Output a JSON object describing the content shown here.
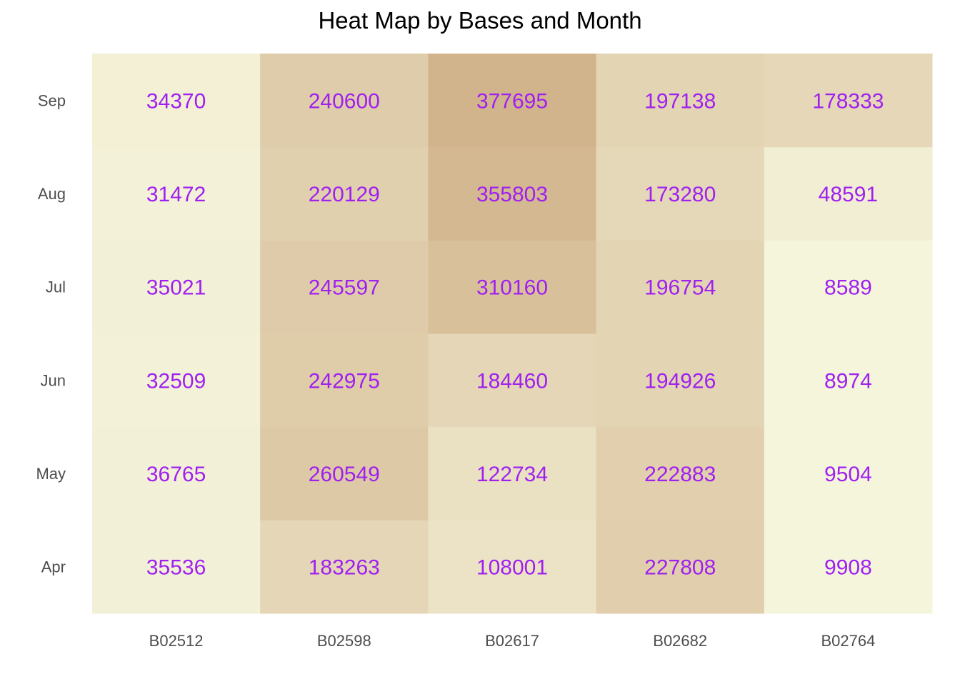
{
  "chart_data": {
    "type": "heatmap",
    "title": "Heat Map by Bases and Month",
    "xlabel": "",
    "ylabel": "",
    "x_categories": [
      "B02512",
      "B02598",
      "B02617",
      "B02682",
      "B02764"
    ],
    "y_categories": [
      "Apr",
      "May",
      "Jun",
      "Jul",
      "Aug",
      "Sep"
    ],
    "values": [
      [
        35536,
        183263,
        108001,
        227808,
        9908
      ],
      [
        36765,
        260549,
        122734,
        222883,
        9504
      ],
      [
        32509,
        242975,
        184460,
        194926,
        8974
      ],
      [
        35021,
        245597,
        310160,
        196754,
        8589
      ],
      [
        31472,
        220129,
        355803,
        173280,
        48591
      ],
      [
        34370,
        240600,
        377695,
        197138,
        178333
      ]
    ],
    "color_low": "#f5f5dc",
    "color_high": "#d2b48c",
    "label_color": "#a020f0",
    "tick_label_color": "#4d4d4d",
    "legend": "none",
    "grid": false
  }
}
